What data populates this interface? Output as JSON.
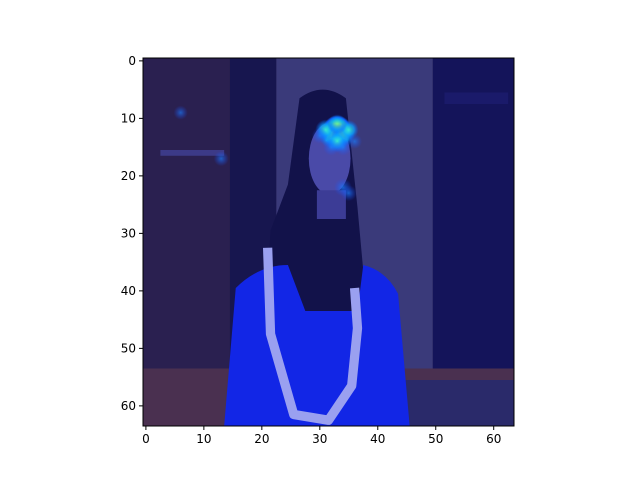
{
  "chart_data": {
    "type": "heatmap",
    "description": "64x64 pixel image with a jet-colormap saliency overlay; axes show pixel indices",
    "x_range": [
      0,
      63
    ],
    "y_range": [
      0,
      63
    ],
    "y_inverted": true,
    "x_ticks": [
      "0",
      "10",
      "20",
      "30",
      "40",
      "50",
      "60"
    ],
    "y_ticks": [
      "0",
      "10",
      "20",
      "30",
      "40",
      "50",
      "60"
    ],
    "x_tick_values": [
      0,
      10,
      20,
      30,
      40,
      50,
      60
    ],
    "y_tick_values": [
      0,
      10,
      20,
      30,
      40,
      50,
      60
    ],
    "hotspots": [
      {
        "x": 33,
        "y": 12,
        "intensity": 1.0
      },
      {
        "x": 32,
        "y": 13,
        "intensity": 0.8
      },
      {
        "x": 34,
        "y": 13,
        "intensity": 0.7
      },
      {
        "x": 33,
        "y": 14,
        "intensity": 0.6
      },
      {
        "x": 31,
        "y": 12,
        "intensity": 0.55
      },
      {
        "x": 35,
        "y": 12,
        "intensity": 0.5
      },
      {
        "x": 33,
        "y": 11,
        "intensity": 0.5
      },
      {
        "x": 32,
        "y": 15,
        "intensity": 0.35
      },
      {
        "x": 34,
        "y": 15,
        "intensity": 0.35
      },
      {
        "x": 34,
        "y": 22,
        "intensity": 0.4
      },
      {
        "x": 35,
        "y": 23,
        "intensity": 0.3
      },
      {
        "x": 30,
        "y": 13,
        "intensity": 0.3
      },
      {
        "x": 36,
        "y": 14,
        "intensity": 0.25
      },
      {
        "x": 13,
        "y": 17,
        "intensity": 0.25
      },
      {
        "x": 6,
        "y": 9,
        "intensity": 0.2
      }
    ],
    "colors": {
      "background": "#221f3d",
      "panel_left": "#2a2050",
      "panel_center": "#3a3a7a",
      "panel_right": "#14145a",
      "wall_right": "#1a1a6a",
      "hair": "#12124a",
      "face": "#4a4aa8",
      "dress": "#1226e6",
      "necklace": "#9aa0f0",
      "floor": "#4a3050",
      "axes": "#000000"
    }
  }
}
